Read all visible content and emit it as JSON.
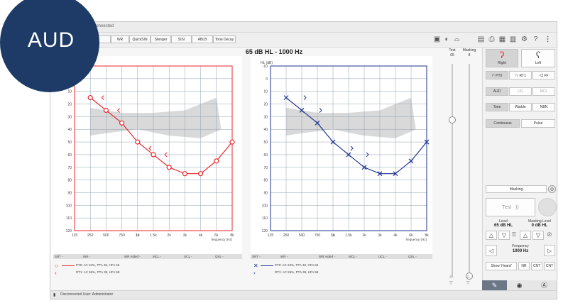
{
  "badge": {
    "label": "AUD"
  },
  "window": {
    "title": "Connected"
  },
  "toolbar": {
    "buttons": [
      "",
      "WR",
      "QuickSIN",
      "Stenger",
      "SISI",
      "ABLB",
      "Tone Decay"
    ]
  },
  "header": {
    "title": "65 dB HL  -  1000 Hz"
  },
  "right_chart": {
    "unit_label": "HL (dB)"
  },
  "axes": {
    "y_ticks": [
      "-10",
      "0",
      "10",
      "20",
      "30",
      "40",
      "50",
      "60",
      "70",
      "80",
      "90",
      "100",
      "110",
      "120"
    ],
    "x_ticks": [
      "125",
      "250",
      "500",
      "750",
      "1k",
      "1.5k",
      "2k",
      "3k",
      "4k",
      "6k",
      "8k"
    ],
    "x_label": "frequency (Hz)"
  },
  "legend": {
    "headers": [
      "SRT -",
      "WR -",
      "WR Aided -",
      "MCL -",
      "UCL -",
      "QSL -"
    ],
    "right_lines": [
      "PT0: AC 23%, PTA 48, HFA 65",
      "RT1: AC 55%, PTA 38, HFA 58"
    ],
    "left_lines": [
      "PT0: AC 23%, PTA 48, HFA 65",
      "RT1: AC 55%, PTA 38, HFA 58"
    ]
  },
  "sliders": {
    "test_label": "Test",
    "test_value": "65",
    "masking_label": "Masking",
    "masking_value": "8"
  },
  "right_panel": {
    "ear_right": "Right",
    "ear_left": "Left",
    "transducer": [
      "PT0",
      "RT1",
      "FF"
    ],
    "mode": [
      "AUD",
      "UG",
      "MCL"
    ],
    "stimulus": [
      "Tone",
      "Warble",
      "NBN"
    ],
    "presentation": [
      "Continuous",
      "Pulse"
    ],
    "masking_btn": "Masking",
    "test_btn": "Test",
    "level_label": "Level",
    "level_value": "65 dB HL",
    "mask_label": "Masking Level",
    "mask_value": "0 dB HL",
    "freq_label": "Frequency",
    "freq_value": "1000 Hz",
    "bottom_btns": [
      "Show 'Heard'",
      "NR",
      "CNT",
      "CNT"
    ]
  },
  "status": {
    "text": "Disconnected  User: Administrator"
  },
  "colors": {
    "right_ear": "#e8262b",
    "left_ear": "#1f3590",
    "banana": "#d9d9d9",
    "badge": "#1e3a66"
  },
  "chart_data": [
    {
      "type": "line",
      "ear": "right",
      "x": [
        "125",
        "250",
        "500",
        "750",
        "1k",
        "1.5k",
        "2k",
        "3k",
        "4k",
        "6k",
        "8k"
      ],
      "series": [
        {
          "symbol": "O",
          "values": [
            null,
            15,
            25,
            35,
            50,
            60,
            70,
            75,
            75,
            65,
            50
          ]
        },
        {
          "symbol": "<",
          "values": [
            null,
            null,
            15,
            25,
            null,
            55,
            60,
            null,
            null,
            null,
            null
          ]
        }
      ],
      "ylim": [
        -10,
        120
      ]
    },
    {
      "type": "line",
      "ear": "left",
      "x": [
        "125",
        "250",
        "500",
        "750",
        "1k",
        "1.5k",
        "2k",
        "3k",
        "4k",
        "6k",
        "8k"
      ],
      "series": [
        {
          "symbol": "X",
          "values": [
            null,
            15,
            25,
            35,
            50,
            60,
            70,
            75,
            75,
            65,
            50
          ]
        },
        {
          "symbol": ">",
          "values": [
            null,
            null,
            15,
            25,
            null,
            55,
            60,
            null,
            null,
            null,
            null
          ]
        }
      ],
      "ylim": [
        -10,
        120
      ]
    }
  ]
}
